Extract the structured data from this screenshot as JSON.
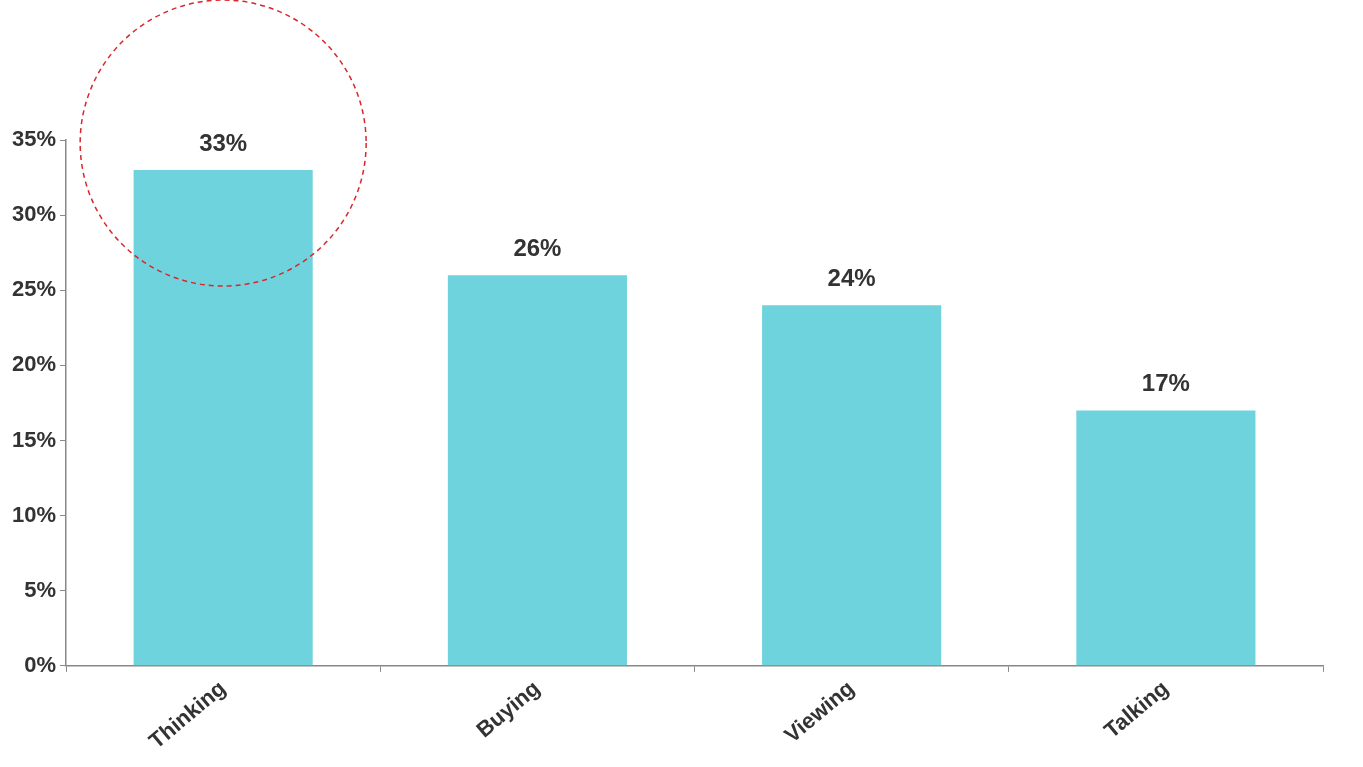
{
  "chart_data": {
    "type": "bar",
    "categories": [
      "Thinking",
      "Buying",
      "Viewing",
      "Talking"
    ],
    "values": [
      33,
      26,
      24,
      17
    ],
    "value_labels": [
      "33%",
      "26%",
      "24%",
      "17%"
    ],
    "data_labels": true,
    "color": "#6fd3de",
    "ylim": [
      0,
      35
    ],
    "yticks": [
      {
        "value": 0,
        "label": "0%"
      },
      {
        "value": 5,
        "label": "5%"
      },
      {
        "value": 10,
        "label": "10%"
      },
      {
        "value": 15,
        "label": "15%"
      },
      {
        "value": 20,
        "label": "20%"
      },
      {
        "value": 25,
        "label": "25%"
      },
      {
        "value": 30,
        "label": "30%"
      },
      {
        "value": 35,
        "label": "35%"
      }
    ],
    "grid": false
  }
}
